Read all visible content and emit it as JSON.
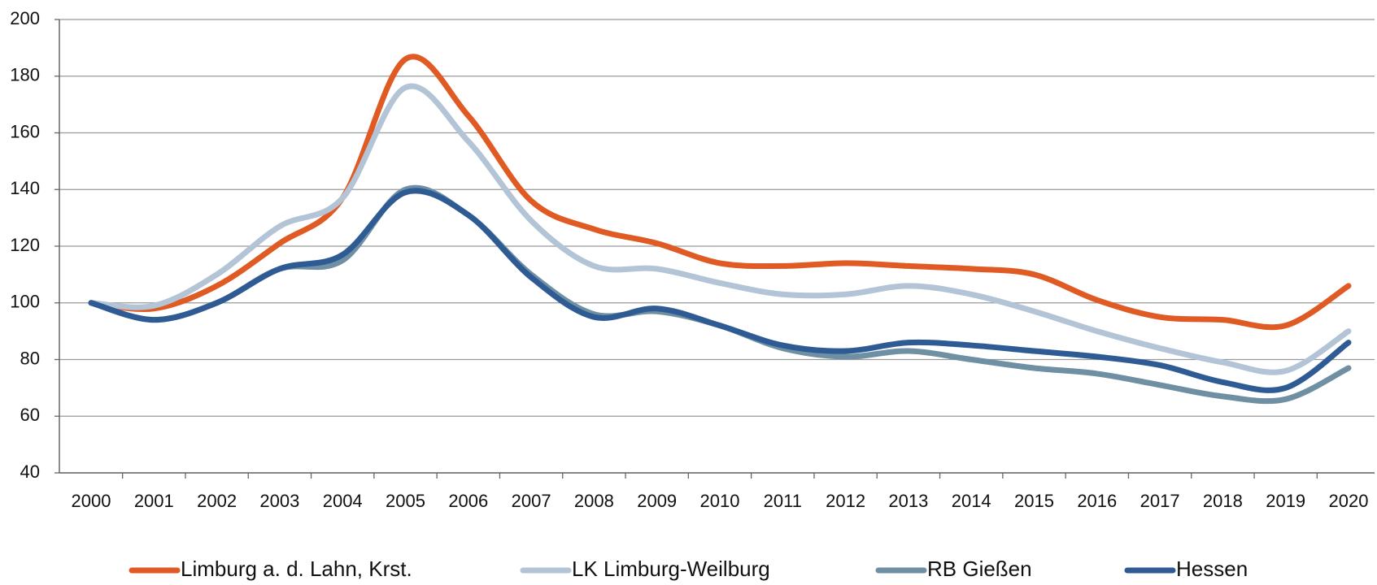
{
  "chart_data": {
    "type": "line",
    "categories": [
      "2000",
      "2001",
      "2002",
      "2003",
      "2004",
      "2005",
      "2006",
      "2007",
      "2008",
      "2009",
      "2010",
      "2011",
      "2012",
      "2013",
      "2014",
      "2015",
      "2016",
      "2017",
      "2018",
      "2019",
      "2020"
    ],
    "series": [
      {
        "name": "Limburg a. d. Lahn, Krst.",
        "color": "#e05a24",
        "values": [
          100,
          98,
          106,
          121,
          137,
          186,
          166,
          136,
          126,
          121,
          114,
          113,
          114,
          113,
          112,
          110,
          101,
          95,
          94,
          92,
          106
        ]
      },
      {
        "name": "LK Limburg-Weilburg",
        "color": "#b3c4d6",
        "values": [
          100,
          99,
          110,
          127,
          137,
          176,
          157,
          129,
          113,
          112,
          107,
          103,
          103,
          106,
          103,
          97,
          90,
          84,
          79,
          76,
          90
        ]
      },
      {
        "name": "RB Gießen",
        "color": "#6f8fa3",
        "values": [
          100,
          94,
          100,
          112,
          115,
          140,
          131,
          110,
          96,
          97,
          92,
          84,
          81,
          83,
          80,
          77,
          75,
          71,
          67,
          66,
          77
        ]
      },
      {
        "name": "Hessen",
        "color": "#2f5b94",
        "values": [
          100,
          94,
          100,
          112,
          117,
          139,
          131,
          109,
          95,
          98,
          92,
          85,
          83,
          86,
          85,
          83,
          81,
          78,
          72,
          70,
          86
        ]
      }
    ],
    "ylim": [
      40,
      200
    ],
    "yticks": [
      40,
      60,
      80,
      100,
      120,
      140,
      160,
      180,
      200
    ],
    "grid": true
  }
}
